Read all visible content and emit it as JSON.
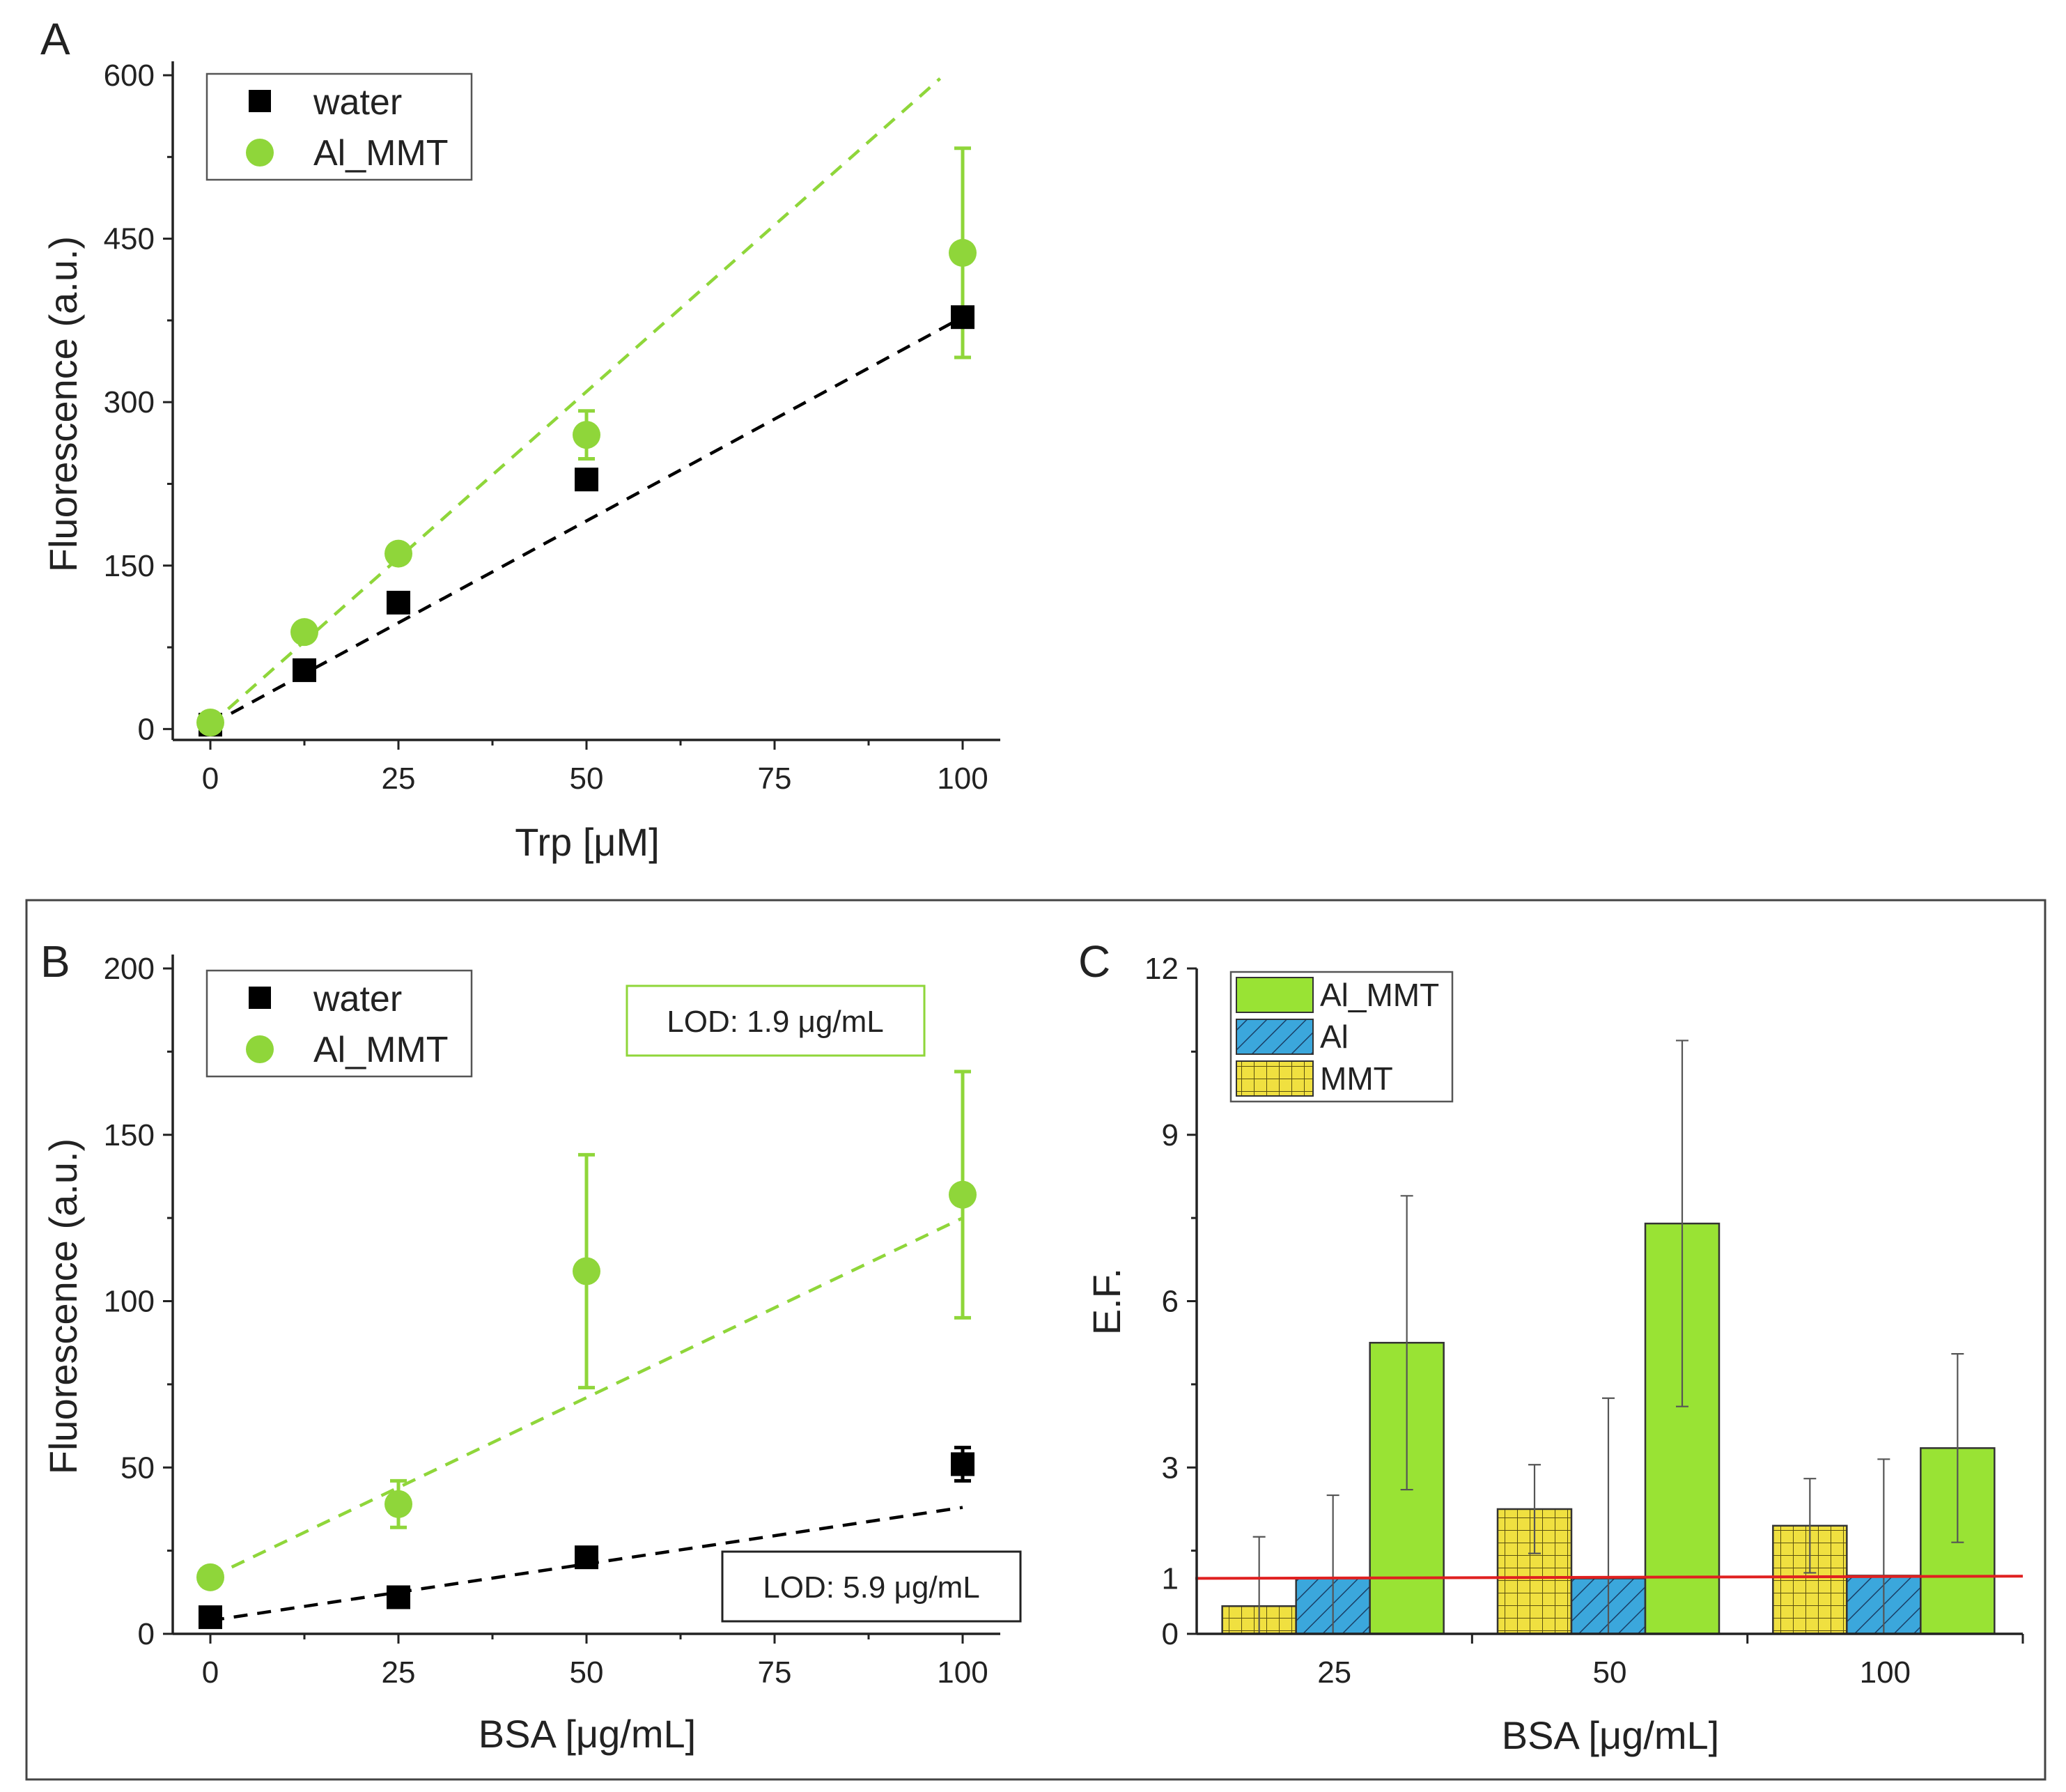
{
  "colors": {
    "water": "#000000",
    "al_mmt": "#8fd63a",
    "al_mmt_bar": "#99e334",
    "al_bar": "#3ba7dc",
    "mmt_bar": "#f0e040",
    "threshold": "#e02020"
  },
  "chart_data": [
    {
      "panel": "A",
      "type": "scatter",
      "xlabel": "Trp [μM]",
      "ylabel": "Fluorescence (a.u.)",
      "xlim": [
        -5,
        105
      ],
      "ylim": [
        -10,
        600
      ],
      "xticks": [
        0,
        25,
        50,
        75,
        100
      ],
      "yticks": [
        0,
        150,
        300,
        450,
        600
      ],
      "legend_position": "top-left",
      "series": [
        {
          "name": "water",
          "marker": "square",
          "x": [
            0,
            12.5,
            25,
            50,
            100
          ],
          "y": [
            4,
            54,
            116,
            229,
            378
          ],
          "err": [
            0,
            0,
            0,
            0,
            6
          ],
          "fit": [
            [
              0,
              4
            ],
            [
              100,
              378
            ]
          ]
        },
        {
          "name": "Al_MMT",
          "marker": "circle",
          "x": [
            0,
            12.5,
            25,
            50,
            100
          ],
          "y": [
            6,
            89,
            161,
            270,
            437
          ],
          "err": [
            0,
            0,
            0,
            22,
            96
          ],
          "fit": [
            [
              0,
              4
            ],
            [
              97,
              597
            ]
          ]
        }
      ]
    },
    {
      "panel": "B",
      "type": "scatter",
      "xlabel": "BSA [μg/mL]",
      "ylabel": "Fluorescence (a.u.)",
      "xlim": [
        -5,
        105
      ],
      "ylim": [
        0,
        200
      ],
      "xticks": [
        0,
        25,
        50,
        75,
        100
      ],
      "yticks": [
        0,
        50,
        100,
        150,
        200
      ],
      "legend_position": "top-left",
      "annotations": [
        "LOD: 1.9 μg/mL",
        "LOD: 5.9 μg/mL"
      ],
      "series": [
        {
          "name": "water",
          "marker": "square",
          "x": [
            0,
            25,
            50,
            100
          ],
          "y": [
            5,
            11,
            23,
            51
          ],
          "err": [
            0,
            0,
            0,
            5
          ],
          "fit": [
            [
              0,
              4
            ],
            [
              100,
              38
            ]
          ]
        },
        {
          "name": "Al_MMT",
          "marker": "circle",
          "x": [
            0,
            25,
            50,
            100
          ],
          "y": [
            17,
            39,
            109,
            132
          ],
          "err": [
            0,
            7,
            35,
            37
          ],
          "fit": [
            [
              0,
              17
            ],
            [
              100,
              125
            ]
          ]
        }
      ]
    },
    {
      "panel": "C",
      "type": "bar",
      "xlabel": "BSA [μg/mL]",
      "ylabel": "E.F.",
      "categories": [
        "25",
        "50",
        "100"
      ],
      "ylim": [
        0,
        12
      ],
      "yticks": [
        0,
        1,
        3,
        6,
        9,
        12
      ],
      "threshold": 1,
      "legend_position": "top-left",
      "series": [
        {
          "name": "MMT",
          "values": [
            0.5,
            2.25,
            1.95
          ],
          "err": [
            1.25,
            0.8,
            0.85
          ]
        },
        {
          "name": "Al",
          "values": [
            1.0,
            1.0,
            1.05
          ],
          "err": [
            1.5,
            3.25,
            2.1
          ]
        },
        {
          "name": "Al_MMT",
          "values": [
            5.25,
            7.4,
            3.35
          ],
          "err": [
            2.65,
            3.3,
            1.7
          ]
        }
      ]
    }
  ],
  "labels": {
    "panel_a": "A",
    "panel_b": "B",
    "panel_c": "C",
    "legend_a_water": "water",
    "legend_a_almmt": "Al_MMT",
    "legend_b_water": "water",
    "legend_b_almmt": "Al_MMT",
    "legend_c_almmt": "Al_MMT",
    "legend_c_al": "Al",
    "legend_c_mmt": "MMT",
    "lod_green": "LOD: 1.9 μg/mL",
    "lod_black": "LOD: 5.9 μg/mL",
    "a_xlabel": "Trp [μM]",
    "a_ylabel": "Fluorescence (a.u.)",
    "b_xlabel": "BSA [μg/mL]",
    "b_ylabel": "Fluorescence (a.u.)",
    "c_xlabel": "BSA [μg/mL]",
    "c_ylabel": "E.F.",
    "a_xt0": "0",
    "a_xt1": "25",
    "a_xt2": "50",
    "a_xt3": "75",
    "a_xt4": "100",
    "a_yt0": "0",
    "a_yt1": "150",
    "a_yt2": "300",
    "a_yt3": "450",
    "a_yt4": "600",
    "b_xt0": "0",
    "b_xt1": "25",
    "b_xt2": "50",
    "b_xt3": "75",
    "b_xt4": "100",
    "b_yt0": "0",
    "b_yt1": "50",
    "b_yt2": "100",
    "b_yt3": "150",
    "b_yt4": "200",
    "c_xt0": "25",
    "c_xt1": "50",
    "c_xt2": "100",
    "c_yt0": "0",
    "c_yt1": "3",
    "c_yt2": "6",
    "c_yt3": "9",
    "c_yt4": "12",
    "c_threshold": "1"
  }
}
